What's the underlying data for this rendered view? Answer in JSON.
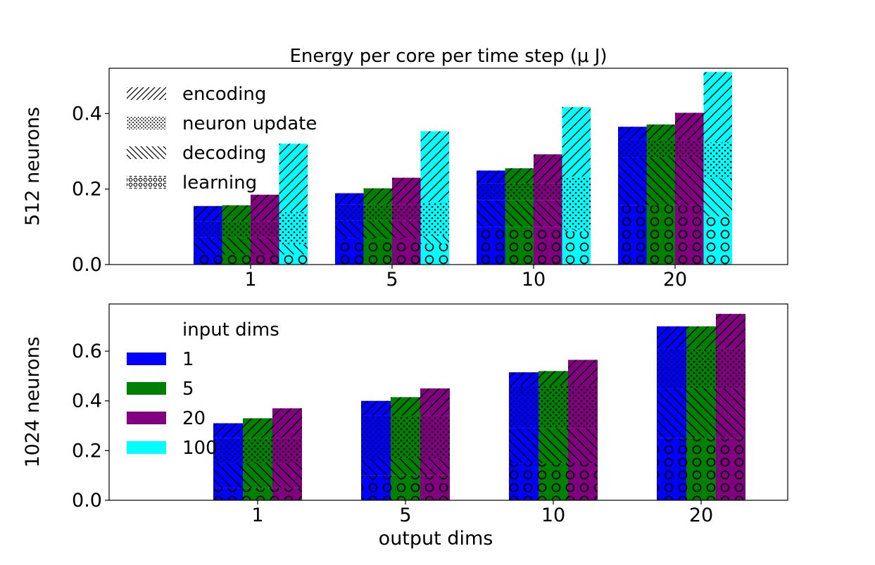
{
  "chart_data": [
    {
      "type": "bar",
      "subtype": "stacked-grouped",
      "title": "Energy per core per time step (μ J)",
      "ylabel": "512 neurons",
      "xlabel": "",
      "categories": [
        "1",
        "5",
        "10",
        "20"
      ],
      "ylim": [
        0,
        0.52
      ],
      "yticks": [
        "0.0",
        "0.2",
        "0.4"
      ],
      "components": [
        "learning",
        "decoding",
        "neuron update",
        "encoding"
      ],
      "series": [
        {
          "name": "1",
          "color": "#0000ff",
          "stacks": [
            [
              0.027,
              0.045,
              0.043,
              0.04
            ],
            [
              0.07,
              0.046,
              0.043,
              0.03
            ],
            [
              0.1,
              0.07,
              0.045,
              0.034
            ],
            [
              0.157,
              0.128,
              0.045,
              0.035
            ]
          ]
        },
        {
          "name": "5",
          "color": "#008000",
          "stacks": [
            [
              0.027,
              0.045,
              0.043,
              0.042
            ],
            [
              0.07,
              0.046,
              0.043,
              0.043
            ],
            [
              0.1,
              0.07,
              0.045,
              0.04
            ],
            [
              0.157,
              0.128,
              0.045,
              0.041
            ]
          ]
        },
        {
          "name": "20",
          "color": "#800080",
          "stacks": [
            [
              0.027,
              0.045,
              0.043,
              0.07
            ],
            [
              0.07,
              0.046,
              0.043,
              0.071
            ],
            [
              0.1,
              0.07,
              0.045,
              0.077
            ],
            [
              0.157,
              0.128,
              0.045,
              0.072
            ]
          ]
        },
        {
          "name": "100",
          "color": "#00ffff",
          "stacks": [
            [
              0.027,
              0.026,
              0.086,
              0.181
            ],
            [
              0.055,
              0.021,
              0.09,
              0.187
            ],
            [
              0.088,
              0.005,
              0.14,
              0.184
            ],
            [
              0.128,
              0.1,
              0.096,
              0.186
            ]
          ]
        }
      ],
      "legend": {
        "position": "top-left",
        "items": [
          {
            "label": "encoding",
            "pattern": "encoding"
          },
          {
            "label": "neuron update",
            "pattern": "neuron update"
          },
          {
            "label": "decoding",
            "pattern": "decoding"
          },
          {
            "label": "learning",
            "pattern": "learning"
          }
        ]
      }
    },
    {
      "type": "bar",
      "subtype": "stacked-grouped",
      "title": "",
      "ylabel": "1024 neurons",
      "xlabel": "output dims",
      "categories": [
        "1",
        "5",
        "10",
        "20"
      ],
      "ylim": [
        0,
        0.79
      ],
      "yticks": [
        "0.0",
        "0.2",
        "0.4",
        "0.6"
      ],
      "components": [
        "learning",
        "decoding",
        "neuron update",
        "encoding"
      ],
      "series": [
        {
          "name": "1",
          "color": "#0000ff",
          "stacks": [
            [
              0.05,
              0.1,
              0.1,
              0.06
            ],
            [
              0.1,
              0.07,
              0.17,
              0.06
            ],
            [
              0.15,
              0.14,
              0.17,
              0.055
            ],
            [
              0.25,
              0.2,
              0.16,
              0.09
            ]
          ]
        },
        {
          "name": "5",
          "color": "#008000",
          "stacks": [
            [
              0.05,
              0.1,
              0.1,
              0.08
            ],
            [
              0.1,
              0.07,
              0.17,
              0.075
            ],
            [
              0.15,
              0.14,
              0.17,
              0.06
            ],
            [
              0.25,
              0.2,
              0.16,
              0.09
            ]
          ]
        },
        {
          "name": "20",
          "color": "#800080",
          "stacks": [
            [
              0.05,
              0.1,
              0.1,
              0.12
            ],
            [
              0.1,
              0.07,
              0.17,
              0.11
            ],
            [
              0.15,
              0.14,
              0.17,
              0.105
            ],
            [
              0.25,
              0.2,
              0.16,
              0.14
            ]
          ]
        }
      ],
      "legend": {
        "position": "top-left",
        "title": "input dims",
        "items": [
          {
            "label": "1",
            "color": "#0000ff"
          },
          {
            "label": "5",
            "color": "#008000"
          },
          {
            "label": "20",
            "color": "#800080"
          },
          {
            "label": "100",
            "color": "#00ffff"
          }
        ]
      }
    }
  ]
}
